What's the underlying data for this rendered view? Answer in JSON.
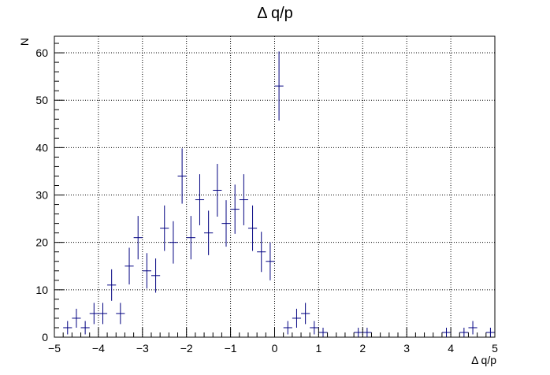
{
  "chart_data": {
    "type": "scatter",
    "title": "Δ q/p",
    "xlabel": "Δ q/p",
    "ylabel": "N",
    "xlim": [
      -5,
      5
    ],
    "ylim": [
      0,
      63.5
    ],
    "grid": true,
    "bin_width": 0.2,
    "x_ticks": [
      -5,
      -4,
      -3,
      -2,
      -1,
      0,
      1,
      2,
      3,
      4,
      5
    ],
    "x_tick_labels": [
      "−5",
      "−4",
      "−3",
      "−2",
      "−1",
      "0",
      "1",
      "2",
      "3",
      "4",
      "5"
    ],
    "y_ticks": [
      0,
      10,
      20,
      30,
      40,
      50,
      60
    ],
    "y_tick_labels": [
      "0",
      "10",
      "20",
      "30",
      "40",
      "50",
      "60"
    ],
    "series_color": "#000080",
    "points": [
      {
        "x": -4.7,
        "y": 2
      },
      {
        "x": -4.5,
        "y": 4
      },
      {
        "x": -4.3,
        "y": 2
      },
      {
        "x": -4.1,
        "y": 5
      },
      {
        "x": -3.9,
        "y": 5
      },
      {
        "x": -3.7,
        "y": 11
      },
      {
        "x": -3.5,
        "y": 5
      },
      {
        "x": -3.3,
        "y": 15
      },
      {
        "x": -3.1,
        "y": 21
      },
      {
        "x": -2.9,
        "y": 14
      },
      {
        "x": -2.7,
        "y": 13
      },
      {
        "x": -2.5,
        "y": 23
      },
      {
        "x": -2.3,
        "y": 20
      },
      {
        "x": -2.1,
        "y": 34
      },
      {
        "x": -1.9,
        "y": 21
      },
      {
        "x": -1.7,
        "y": 29
      },
      {
        "x": -1.5,
        "y": 22
      },
      {
        "x": -1.3,
        "y": 31
      },
      {
        "x": -1.1,
        "y": 24
      },
      {
        "x": -0.9,
        "y": 27
      },
      {
        "x": -0.7,
        "y": 29
      },
      {
        "x": -0.5,
        "y": 23
      },
      {
        "x": -0.3,
        "y": 18
      },
      {
        "x": -0.1,
        "y": 16
      },
      {
        "x": 0.1,
        "y": 53
      },
      {
        "x": 0.3,
        "y": 2
      },
      {
        "x": 0.5,
        "y": 4
      },
      {
        "x": 0.7,
        "y": 5
      },
      {
        "x": 0.9,
        "y": 2
      },
      {
        "x": 1.1,
        "y": 1
      },
      {
        "x": 1.9,
        "y": 1
      },
      {
        "x": 2.1,
        "y": 1
      },
      {
        "x": 3.9,
        "y": 1
      },
      {
        "x": 4.3,
        "y": 1
      },
      {
        "x": 4.5,
        "y": 2
      },
      {
        "x": 4.9,
        "y": 1
      }
    ]
  }
}
